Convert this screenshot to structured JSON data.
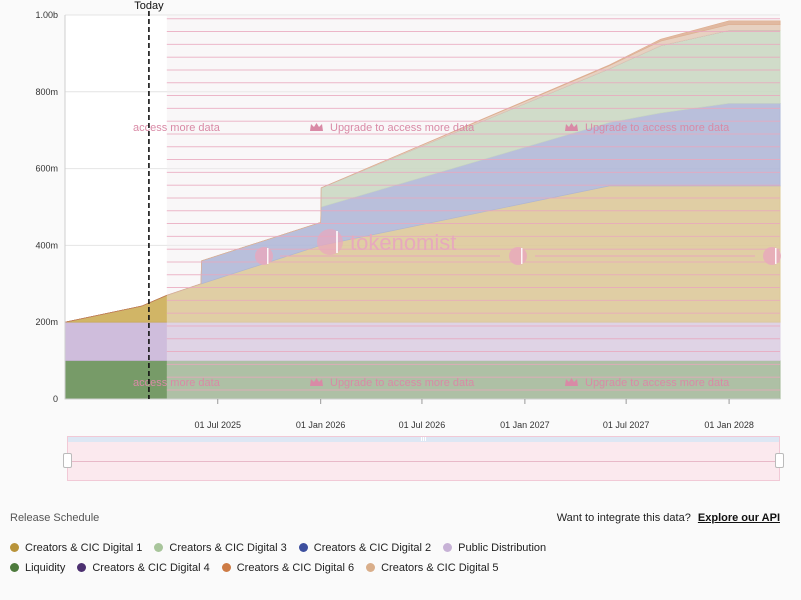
{
  "chart_data": {
    "type": "area",
    "stacked": true,
    "yticks": [
      "0",
      "200m",
      "400m",
      "600m",
      "800m",
      "1.00b"
    ],
    "ylim": [
      0,
      1000
    ],
    "xlim": [
      "2024-10-01",
      "2028-04-01"
    ],
    "xticks": [
      "01 Jul 2025",
      "01 Jan 2026",
      "01 Jul 2026",
      "01 Jan 2027",
      "01 Jul 2027",
      "01 Jan 2028"
    ],
    "xtick_dates": [
      "2025-07-01",
      "2026-01-01",
      "2026-07-01",
      "2027-01-01",
      "2027-07-01",
      "2028-01-01"
    ],
    "today_label": "Today",
    "today_date": "2025-02-28",
    "locked_from": "2025-04-01",
    "x": [
      "2024-10-01",
      "2025-02-15",
      "2025-04-01",
      "2025-06-01",
      "2025-06-02",
      "2026-01-01",
      "2026-01-02",
      "2027-06-01",
      "2027-09-01",
      "2028-01-01",
      "2028-04-01"
    ],
    "series": [
      {
        "name": "Liquidity",
        "color": "#5f8a4e",
        "values": [
          100,
          100,
          100,
          100,
          100,
          100,
          100,
          100,
          100,
          100,
          100
        ]
      },
      {
        "name": "Public Distribution",
        "color": "#c7b2d6",
        "values": [
          100,
          100,
          100,
          100,
          100,
          100,
          100,
          100,
          100,
          100,
          100
        ]
      },
      {
        "name": "Creators & CIC Digital 1",
        "color": "#c9a84b",
        "values": [
          0,
          42,
          70,
          100,
          100,
          200,
          200,
          355,
          355,
          355,
          355
        ]
      },
      {
        "name": "Creators & CIC Digital 2",
        "color": "#7687c2",
        "values": [
          0,
          0,
          0,
          0,
          60,
          60,
          100,
          165,
          190,
          215,
          215
        ]
      },
      {
        "name": "Creators & CIC Digital 3",
        "color": "#a8c59b",
        "values": [
          0,
          0,
          0,
          0,
          0,
          0,
          50,
          140,
          175,
          190,
          190
        ]
      },
      {
        "name": "Creators & CIC Digital 4",
        "color": "#4c3070",
        "values": [
          0,
          0,
          0,
          0,
          0,
          0,
          0,
          0,
          0,
          0,
          0
        ]
      },
      {
        "name": "Creators & CIC Digital 5",
        "color": "#d9ae8a",
        "values": [
          0,
          0,
          0,
          0,
          0,
          0,
          0,
          8,
          12,
          15,
          15
        ]
      },
      {
        "name": "Creators & CIC Digital 6",
        "color": "#cd7b45",
        "values": [
          0,
          0,
          0,
          0,
          0,
          0,
          0,
          2,
          5,
          10,
          10
        ]
      }
    ],
    "watermarks": {
      "upgrade_text": "Upgrade to access more data",
      "upgrade_partial": "access more data",
      "brand": "tokenomist"
    }
  },
  "footer": {
    "title": "Release Schedule",
    "api_text": "Want to integrate this data?",
    "api_link": "Explore our API"
  },
  "legend": [
    {
      "name": "Creators & CIC Digital 1",
      "color": "#b8933a"
    },
    {
      "name": "Creators & CIC Digital 3",
      "color": "#a8c59b"
    },
    {
      "name": "Creators & CIC Digital 2",
      "color": "#3d4f9e"
    },
    {
      "name": "Public Distribution",
      "color": "#c7b2d6"
    },
    {
      "name": "Liquidity",
      "color": "#4d7a3c"
    },
    {
      "name": "Creators & CIC Digital 4",
      "color": "#4c3070"
    },
    {
      "name": "Creators & CIC Digital 6",
      "color": "#cd7b45"
    },
    {
      "name": "Creators & CIC Digital 5",
      "color": "#d9ae8a"
    }
  ]
}
